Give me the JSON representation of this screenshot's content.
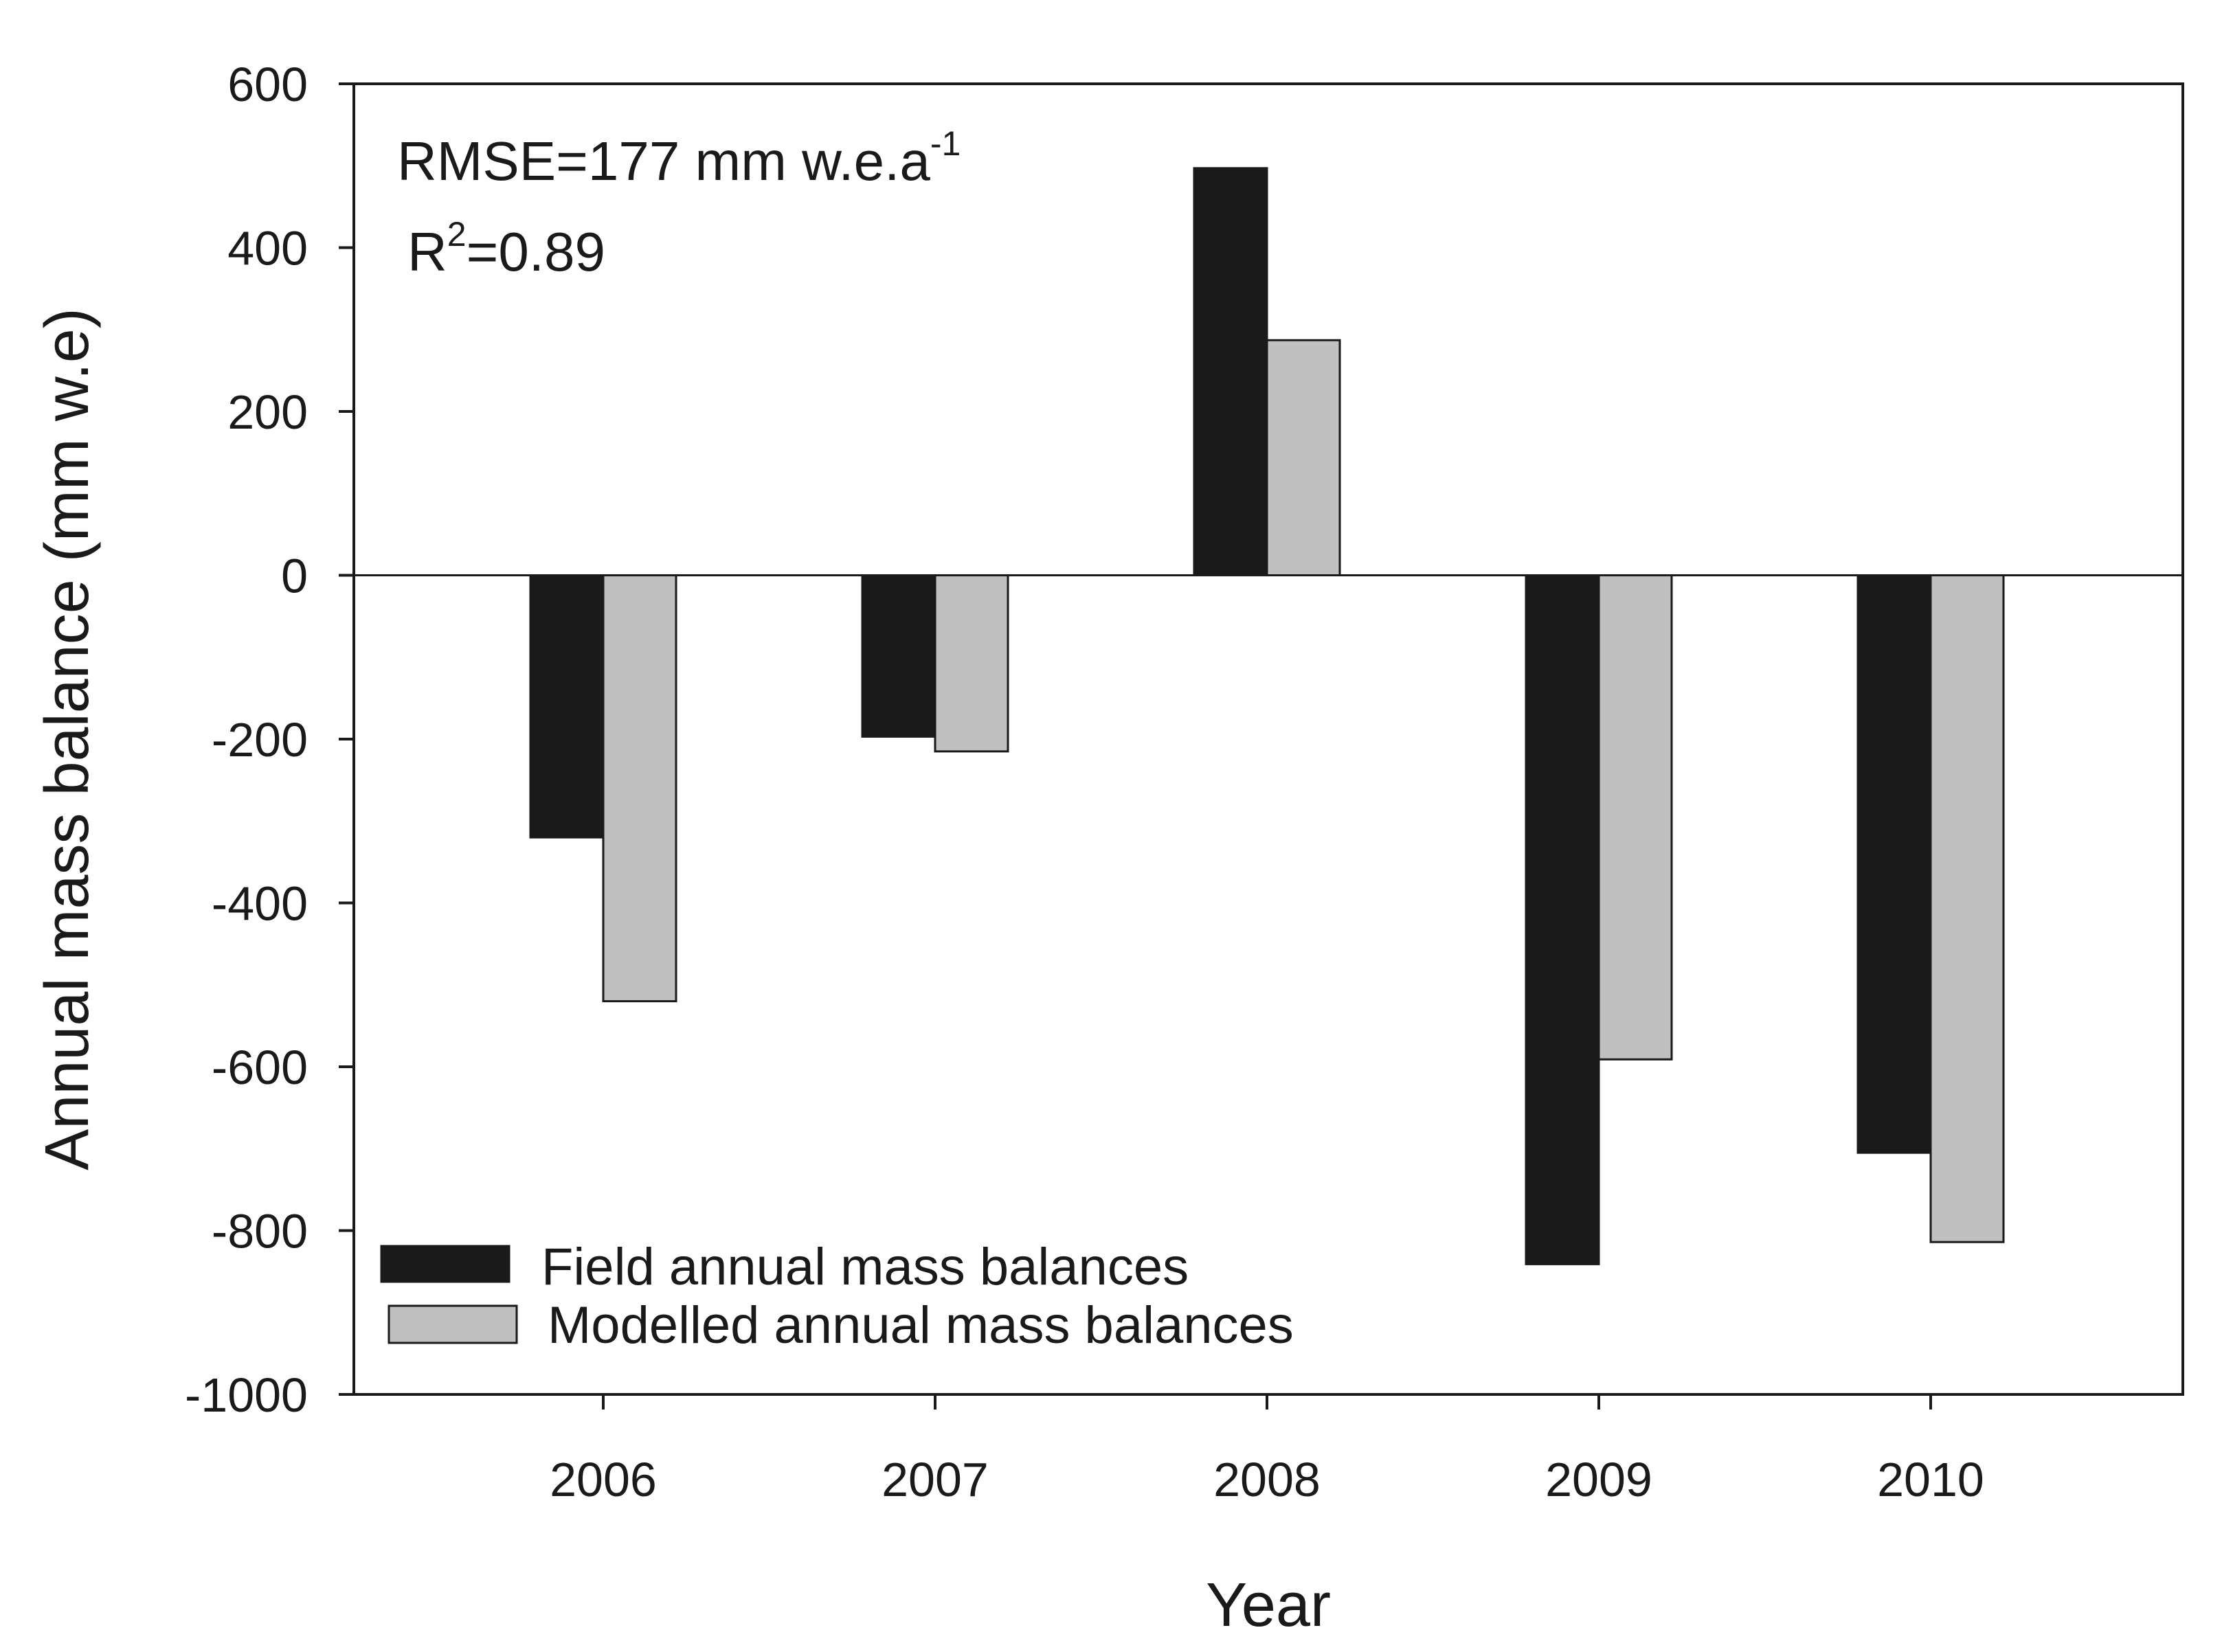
{
  "chart_data": {
    "type": "bar",
    "title": "",
    "xlabel": "Year",
    "ylabel": "Annual mass balance (mm w.e)",
    "categories": [
      "2006",
      "2007",
      "2008",
      "2009",
      "2010"
    ],
    "series": [
      {
        "name": "Field annual mass balances",
        "color": "#1a1a1a",
        "values": [
          -320,
          -197,
          497,
          -841,
          -705
        ]
      },
      {
        "name": "Modelled annual mass balances",
        "color": "#c0c0c0",
        "values": [
          -520,
          -215,
          287,
          -591,
          -814
        ]
      }
    ],
    "ylim": [
      -1000,
      600
    ],
    "yticks": [
      600,
      400,
      200,
      0,
      -200,
      -400,
      -600,
      -800,
      -1000
    ],
    "ytick_labels": [
      "600",
      "400",
      "200",
      "0",
      "-200",
      "-400",
      "-600",
      "-800",
      "-1000"
    ],
    "grid": false,
    "legend_position": "bottom-left",
    "annotations": {
      "rmse_text": "RMSE=177 mm w.e.a",
      "rmse_sup": "-1",
      "r2_prefix": "R",
      "r2_sup": "2",
      "r2_value": "=0.89"
    }
  }
}
